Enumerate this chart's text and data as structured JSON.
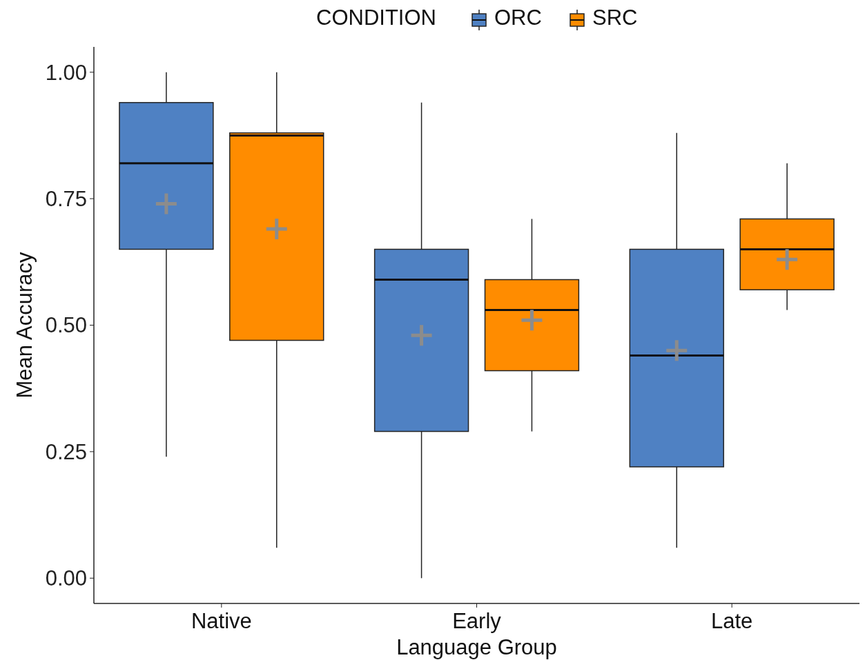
{
  "chart_data": {
    "type": "box",
    "xlabel": "Language Group",
    "ylabel": "Mean Accuracy",
    "legend_title": "CONDITION",
    "legend": "top",
    "grid": false,
    "marker": "cross",
    "categories": [
      "Native",
      "Early",
      "Late"
    ],
    "ylim": [
      -0.05,
      1.05
    ],
    "yticks": [
      {
        "value": 0,
        "label": "0.00"
      },
      {
        "value": 0.25,
        "label": "0.25"
      },
      {
        "value": 0.5,
        "label": "0.50"
      },
      {
        "value": 0.75,
        "label": "0.75"
      },
      {
        "value": 1,
        "label": "1.00"
      }
    ],
    "series": [
      {
        "name": "ORC",
        "color": "#4f81c3",
        "boxes": [
          {
            "low": 0.24,
            "q1": 0.65,
            "median": 0.82,
            "q3": 0.94,
            "high": 1.0,
            "mean": 0.74
          },
          {
            "low": 0.0,
            "q1": 0.29,
            "median": 0.59,
            "q3": 0.65,
            "high": 0.94,
            "mean": 0.48
          },
          {
            "low": 0.06,
            "q1": 0.22,
            "median": 0.44,
            "q3": 0.65,
            "high": 0.88,
            "mean": 0.45
          }
        ]
      },
      {
        "name": "SRC",
        "color": "#ff8c00",
        "boxes": [
          {
            "low": 0.06,
            "q1": 0.47,
            "median": 0.875,
            "q3": 0.88,
            "high": 1.0,
            "mean": 0.69
          },
          {
            "low": 0.29,
            "q1": 0.41,
            "median": 0.53,
            "q3": 0.59,
            "high": 0.71,
            "mean": 0.51
          },
          {
            "low": 0.53,
            "q1": 0.57,
            "median": 0.65,
            "q3": 0.71,
            "high": 0.82,
            "mean": 0.63
          }
        ]
      }
    ]
  }
}
